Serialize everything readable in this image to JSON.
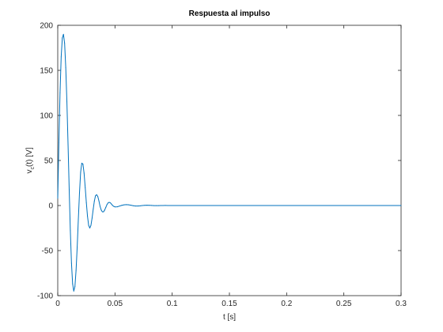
{
  "chart_data": {
    "type": "line",
    "title": "Respuesta al impulso",
    "xlabel": "t [s]",
    "ylabel": {
      "main": "v",
      "subscript": "c",
      "suffix": "(t) [V]"
    },
    "xlim": [
      0,
      0.3
    ],
    "ylim": [
      -100,
      200
    ],
    "xticks": [
      0,
      0.05,
      0.1,
      0.15,
      0.2,
      0.25,
      0.3
    ],
    "xtick_labels": [
      "0",
      "0.05",
      "0.1",
      "0.15",
      "0.2",
      "0.25",
      "0.3"
    ],
    "yticks": [
      -100,
      -50,
      0,
      50,
      100,
      150,
      200
    ],
    "ytick_labels": [
      "-100",
      "-50",
      "0",
      "50",
      "100",
      "150",
      "200"
    ],
    "grid": false,
    "line_color": "#0072bd",
    "series": [
      {
        "x": [
          0,
          0.001,
          0.002,
          0.003,
          0.004,
          0.005,
          0.006,
          0.007,
          0.008,
          0.009,
          0.01,
          0.011,
          0.012,
          0.013,
          0.014,
          0.015,
          0.016,
          0.017,
          0.018,
          0.019,
          0.02,
          0.021,
          0.022,
          0.023,
          0.024,
          0.025,
          0.026,
          0.027,
          0.028,
          0.029,
          0.03,
          0.031,
          0.032,
          0.033,
          0.034,
          0.035,
          0.036,
          0.037,
          0.038,
          0.039,
          0.04,
          0.041,
          0.042,
          0.043,
          0.044,
          0.045,
          0.046,
          0.047,
          0.048,
          0.049,
          0.05,
          0.052,
          0.054,
          0.056,
          0.058,
          0.06,
          0.062,
          0.064,
          0.066,
          0.068,
          0.07,
          0.072,
          0.074,
          0.076,
          0.078,
          0.08,
          0.082,
          0.084,
          0.086,
          0.088,
          0.09,
          0.092,
          0.094,
          0.096,
          0.098,
          0.1,
          0.103,
          0.106,
          0.109,
          0.112,
          0.115,
          0.118,
          0.121,
          0.124,
          0.127,
          0.13,
          0.135,
          0.14,
          0.15,
          0.16,
          0.18,
          0.2,
          0.22,
          0.24,
          0.26,
          0.28,
          0.3
        ],
        "y": [
          8,
          70,
          125,
          165,
          186,
          190,
          180,
          153,
          115,
          68,
          18,
          -28,
          -64,
          -87,
          -95,
          -90,
          -72,
          -46,
          -15,
          14,
          37,
          47,
          46,
          36,
          20,
          3,
          -12,
          -22,
          -25,
          -22,
          -14,
          -4,
          5,
          11,
          12,
          10,
          5,
          -1,
          -5,
          -7,
          -7,
          -5,
          -2,
          1,
          3,
          3.5,
          3,
          1.5,
          0,
          -1,
          -1.5,
          -1.4,
          -0.6,
          0.2,
          0.8,
          1,
          0.8,
          0.3,
          -0.2,
          -0.5,
          -0.5,
          -0.3,
          0,
          0.2,
          0.3,
          0.2,
          0.1,
          -0.1,
          -0.15,
          -0.1,
          0,
          0.05,
          0.08,
          0.05,
          0.02,
          0,
          -0.02,
          -0.02,
          -0.01,
          0,
          0.01,
          0.01,
          0,
          0,
          0,
          0,
          0,
          0,
          0,
          0,
          0,
          0,
          0,
          0,
          0,
          0,
          0
        ]
      }
    ]
  }
}
